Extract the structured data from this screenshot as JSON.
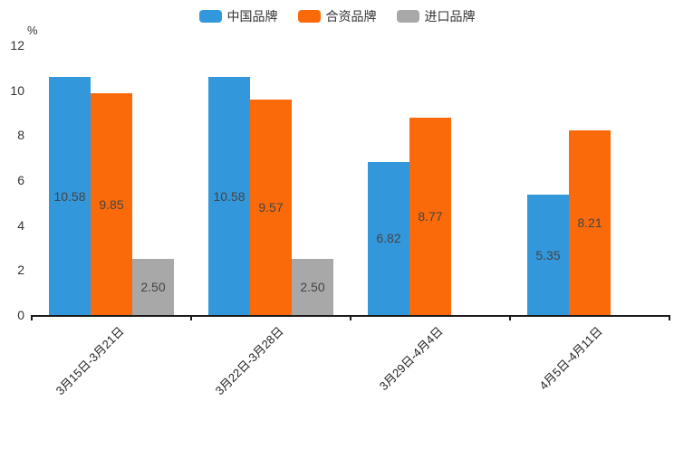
{
  "chart_data": {
    "type": "bar",
    "title": "",
    "ylabel": "%",
    "xlabel": "",
    "ylim": [
      0,
      12
    ],
    "ytick_step": 2,
    "grid": false,
    "legend_position": "top-center",
    "x_label_rotation_deg": 45,
    "categories": [
      "3月15日-3月21日",
      "3月22日-3月28日",
      "3月29日-4月4日",
      "4月5日-4月11日"
    ],
    "series": [
      {
        "name": "中国品牌",
        "color": "#3398DB",
        "values": [
          10.58,
          10.58,
          6.82,
          5.35
        ]
      },
      {
        "name": "合资品牌",
        "color": "#FB6A0A",
        "values": [
          9.85,
          9.57,
          8.77,
          8.21
        ]
      },
      {
        "name": "进口品牌",
        "color": "#A8A8A8",
        "values": [
          2.5,
          2.5,
          null,
          null
        ]
      }
    ],
    "value_label_decimals": 2,
    "value_label_position": "inside-center",
    "axis_color": "#1a1a1a",
    "text_color": "#333333",
    "value_label_color": "#444444"
  }
}
